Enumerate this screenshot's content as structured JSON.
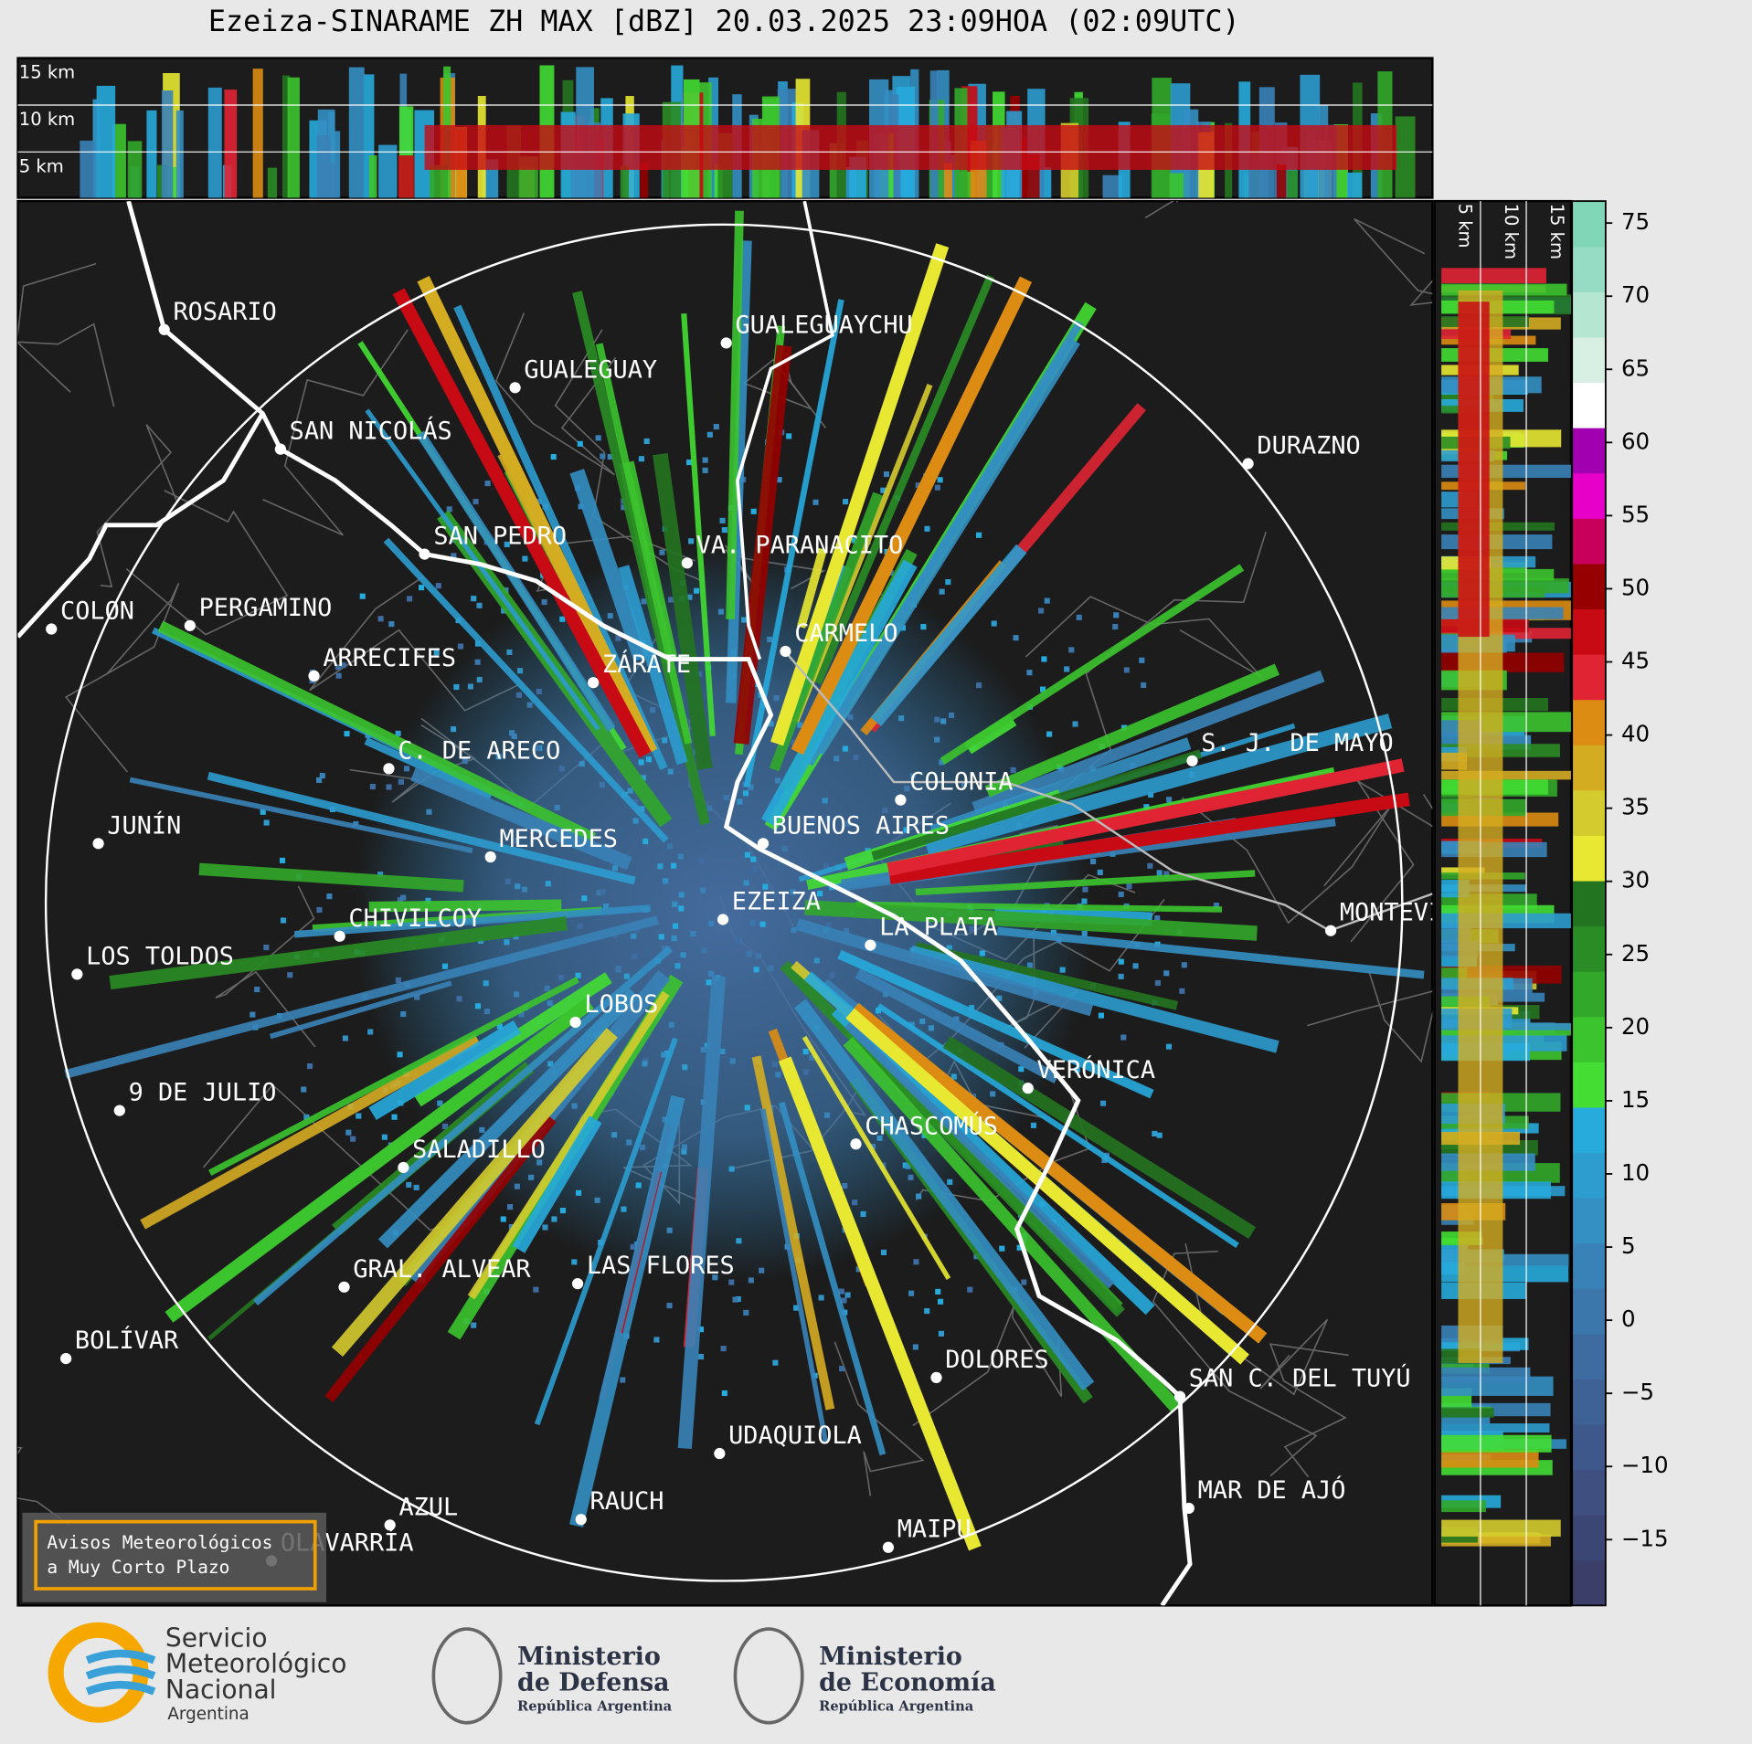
{
  "title": "Ezeiza-SINARAME ZH MAX [dBZ] 20.03.2025 23:09HOA (02:09UTC)",
  "top_panel": {
    "height_labels": [
      "15 km",
      "10 km",
      "5 km"
    ]
  },
  "side_panel": {
    "height_labels": [
      "5 km",
      "10 km",
      "15 km"
    ]
  },
  "cities": [
    {
      "name": "ROSARIO"
    },
    {
      "name": "GUALEGUAYCHU"
    },
    {
      "name": "GUALEGUAY"
    },
    {
      "name": "SAN NICOLÁS"
    },
    {
      "name": "DURAZNO"
    },
    {
      "name": "SAN PEDRO"
    },
    {
      "name": "VA. PARANACITO"
    },
    {
      "name": "COLON"
    },
    {
      "name": "PERGAMINO"
    },
    {
      "name": "CARMELO"
    },
    {
      "name": "ARRECIFES"
    },
    {
      "name": "ZÁRATE"
    },
    {
      "name": "S. J. DE MAYO"
    },
    {
      "name": "C. DE ARECO"
    },
    {
      "name": "COLONIA"
    },
    {
      "name": "BUENOS AIRES"
    },
    {
      "name": "JUNÍN"
    },
    {
      "name": "MERCEDES"
    },
    {
      "name": "EZEIZA"
    },
    {
      "name": "MONTEVIDEO"
    },
    {
      "name": "CHIVILCOY"
    },
    {
      "name": "LA PLATA"
    },
    {
      "name": "LOS TOLDOS"
    },
    {
      "name": "LOBOS"
    },
    {
      "name": "VERÓNICA"
    },
    {
      "name": "9 DE JULIO"
    },
    {
      "name": "CHASCOMÚS"
    },
    {
      "name": "SALADILLO"
    },
    {
      "name": "GRAL. ALVEAR"
    },
    {
      "name": "LAS FLORES"
    },
    {
      "name": "BOLÍVAR"
    },
    {
      "name": "DOLORES"
    },
    {
      "name": "SAN C. DEL TUYÚ"
    },
    {
      "name": "UDAQUIOLA"
    },
    {
      "name": "AZUL"
    },
    {
      "name": "MAR DE AJÓ"
    },
    {
      "name": "RAUCH"
    },
    {
      "name": "OLAVARRÍA"
    },
    {
      "name": "MAIPU"
    }
  ],
  "colorbar": {
    "lim": [
      -19.5,
      76.5
    ],
    "ticks": [
      75,
      70,
      65,
      60,
      55,
      50,
      45,
      40,
      35,
      30,
      25,
      20,
      15,
      10,
      5,
      0,
      {
        "value": -5,
        "label": "−5"
      },
      {
        "value": -10,
        "label": "−10"
      },
      {
        "value": -15,
        "label": "−15"
      }
    ],
    "colors": [
      "#3a3e68",
      "#3c4674",
      "#3e4f80",
      "#3f588b",
      "#3f6296",
      "#3e6ca1",
      "#3c77ac",
      "#3982b7",
      "#348fc3",
      "#2d9ccf",
      "#27aadc",
      "#43dd33",
      "#3cc42e",
      "#32a82a",
      "#2a8c24",
      "#237420",
      "#e8e832",
      "#d4cc2e",
      "#d4ac22",
      "#dc8c12",
      "#e02434",
      "#c80a14",
      "#960000",
      "#c8005c",
      "#e600c8",
      "#a000b0",
      "#ffffff",
      "#d8f0e4",
      "#b4e6d2",
      "#96dcc4",
      "#82d6b8"
    ]
  },
  "alert_box": {
    "lines": [
      "Avisos Meteorológicos",
      "a Muy Corto Plazo"
    ]
  },
  "logos": {
    "smn": [
      "Servicio",
      "Meteorológico",
      "Nacional",
      "Argentina"
    ],
    "defensa": [
      "Ministerio",
      "de Defensa",
      "República Argentina"
    ],
    "economia": [
      "Ministerio",
      "de Economía",
      "República Argentina"
    ]
  }
}
